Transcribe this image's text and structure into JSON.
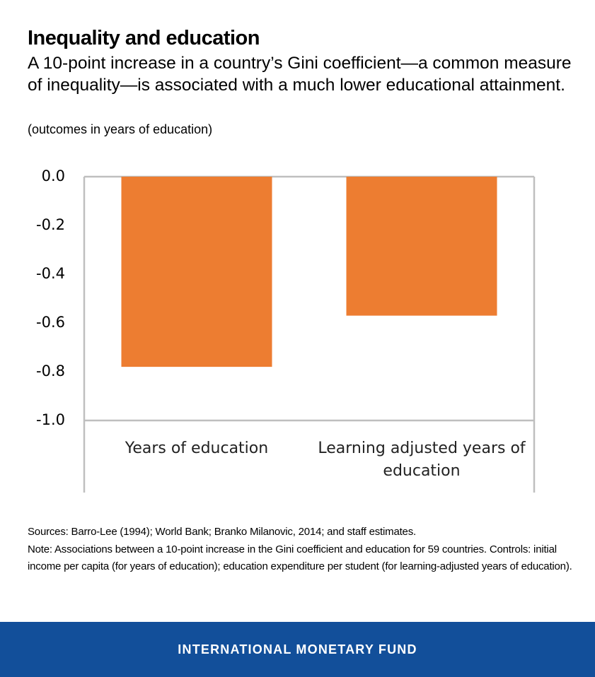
{
  "header": {
    "title": "Inequality and education",
    "subtitle": "A 10-point increase in a country’s Gini coefficient—a common measure of inequality—is associated with a much lower educational attainment.",
    "units": "(outcomes in years of education)"
  },
  "chart_data": {
    "type": "bar",
    "categories": [
      "Years of education",
      "Learning adjusted years of education"
    ],
    "category_lines": [
      [
        "Years of education"
      ],
      [
        "Learning adjusted years of",
        "education"
      ]
    ],
    "values": [
      -0.78,
      -0.57
    ],
    "ylim": [
      -1.0,
      0.0
    ],
    "yticks": [
      "0.0",
      "-0.2",
      "-0.4",
      "-0.6",
      "-0.8",
      "-1.0"
    ],
    "ytick_values": [
      0.0,
      -0.2,
      -0.4,
      -0.6,
      -0.8,
      -1.0
    ],
    "bar_color": "#ed7d31",
    "axis_color": "#bfbfbf",
    "grid": false
  },
  "notes": {
    "sources": "Sources: Barro-Lee (1994); World Bank; Branko Milanovic, 2014; and staff estimates.",
    "note": "Note:  Associations between a 10-point increase in the Gini coefficient and education for 59 countries. Controls: initial income per capita (for years of education); education expenditure per student (for learning-adjusted years of education)."
  },
  "footer": {
    "brand": "INTERNATIONAL MONETARY FUND",
    "color": "#124f9a"
  }
}
